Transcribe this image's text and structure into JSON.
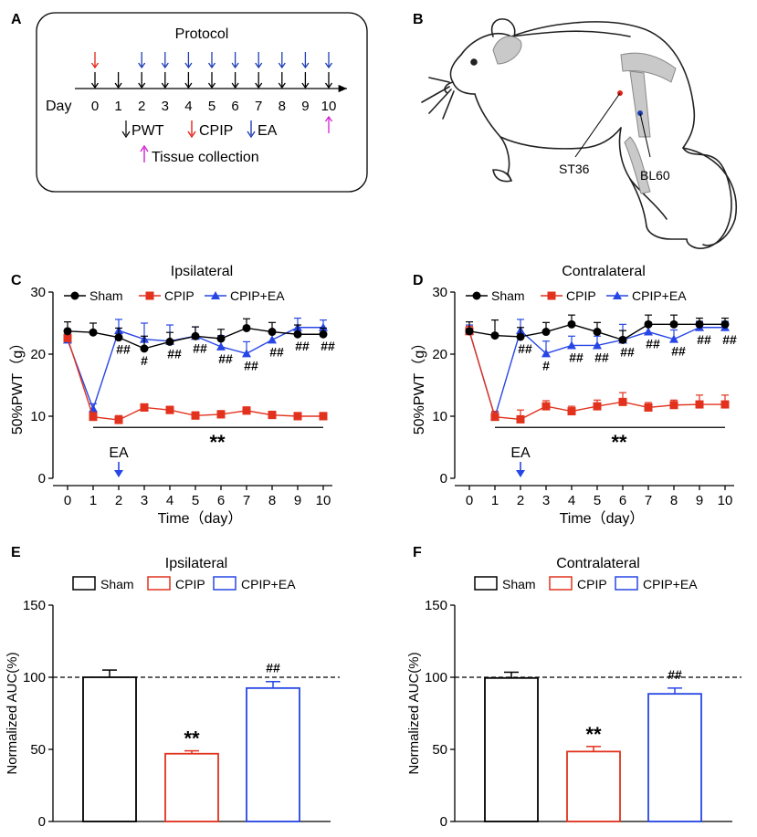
{
  "panel_labels": {
    "a": "A",
    "b": "B",
    "c": "C",
    "d": "D",
    "e": "E",
    "f": "F"
  },
  "protocol": {
    "title": "Protocol",
    "day_label": "Day",
    "days": [
      "0",
      "1",
      "2",
      "3",
      "4",
      "5",
      "6",
      "7",
      "8",
      "9",
      "10"
    ],
    "legend_pwt": "PWT",
    "legend_cpip": "CPIP",
    "legend_ea": "EA",
    "legend_tissue": "Tissue collection",
    "cpip_days": [
      0
    ],
    "ea_days": [
      2,
      3,
      4,
      5,
      6,
      7,
      8,
      9,
      10
    ],
    "pwt_days": [
      0,
      1,
      2,
      3,
      4,
      5,
      6,
      7,
      8,
      9,
      10
    ],
    "tissue_days": [
      10
    ],
    "colors": {
      "pwt": "#000000",
      "cpip": "#e2231a",
      "ea": "#1f3fb4",
      "tissue": "#d21fd2"
    }
  },
  "rat": {
    "st36_label": "ST36",
    "bl60_label": "BL60"
  },
  "colors": {
    "sham": "#000000",
    "cpip": "#e2321d",
    "cpip_ea": "#2746e6"
  },
  "chart_data": [
    {
      "id": "C",
      "type": "line",
      "title": "Ipsilateral",
      "xlabel": "Time（day）",
      "ylabel": "50%PWT（g）",
      "x": [
        0,
        1,
        2,
        3,
        4,
        5,
        6,
        7,
        8,
        9,
        10
      ],
      "xlim": [
        0,
        10
      ],
      "ylim": [
        0,
        30
      ],
      "yticks": [
        0,
        10,
        20,
        30
      ],
      "series": [
        {
          "name": "Sham",
          "values": [
            23.7,
            23.5,
            22.7,
            20.9,
            22.0,
            22.9,
            22.5,
            24.2,
            23.6,
            23.2,
            23.2
          ],
          "err": [
            1.5,
            1.5,
            1.5,
            2.0,
            1.5,
            1.5,
            1.5,
            1.5,
            1.5,
            1.5,
            1.0
          ]
        },
        {
          "name": "CPIP",
          "values": [
            22.6,
            9.9,
            9.4,
            11.4,
            11.0,
            10.1,
            10.3,
            10.9,
            10.2,
            10.0,
            10.0
          ],
          "err": [
            0.8,
            0.7,
            0.7,
            0.6,
            0.6,
            0.6,
            0.6,
            0.6,
            0.6,
            0.6,
            0.6
          ]
        },
        {
          "name": "CPIP+EA",
          "values": [
            22.3,
            11.2,
            23.8,
            22.4,
            22.1,
            22.9,
            21.2,
            20.1,
            22.3,
            24.3,
            24.3
          ],
          "err": [
            1.5,
            0.8,
            1.8,
            2.6,
            2.6,
            1.5,
            1.8,
            1.9,
            1.5,
            1.5,
            1.2
          ]
        }
      ],
      "hash_labels": [
        {
          "x": 2,
          "text": "##"
        },
        {
          "x": 3,
          "text": "#"
        },
        {
          "x": 4,
          "text": "##"
        },
        {
          "x": 5,
          "text": "##"
        },
        {
          "x": 6,
          "text": "##"
        },
        {
          "x": 7,
          "text": "##"
        },
        {
          "x": 8,
          "text": "##"
        },
        {
          "x": 9,
          "text": "##"
        },
        {
          "x": 10,
          "text": "##"
        }
      ],
      "sig_line": {
        "x_from": 1,
        "x_to": 10,
        "label": "**"
      },
      "ea_marker": {
        "x": 2,
        "label": "EA"
      }
    },
    {
      "id": "D",
      "type": "line",
      "title": "Contralateral",
      "xlabel": "Time（day）",
      "ylabel": "50%PWT（g）",
      "x": [
        0,
        1,
        2,
        3,
        4,
        5,
        6,
        7,
        8,
        9,
        10
      ],
      "xlim": [
        0,
        10
      ],
      "ylim": [
        0,
        30
      ],
      "yticks": [
        0,
        10,
        20,
        30
      ],
      "series": [
        {
          "name": "Sham",
          "values": [
            23.7,
            23.0,
            22.8,
            23.6,
            24.8,
            23.6,
            22.3,
            24.8,
            24.8,
            24.8,
            24.8
          ],
          "err": [
            1.5,
            2.5,
            1.5,
            1.5,
            1.5,
            1.5,
            1.5,
            1.5,
            1.5,
            1.0,
            1.0
          ]
        },
        {
          "name": "CPIP",
          "values": [
            23.7,
            9.9,
            9.5,
            11.6,
            10.8,
            11.6,
            12.3,
            11.4,
            11.8,
            11.9,
            11.9
          ],
          "err": [
            0.8,
            0.9,
            1.5,
            0.9,
            0.8,
            1.0,
            1.5,
            0.8,
            0.8,
            1.5,
            1.5
          ]
        },
        {
          "name": "CPIP+EA",
          "values": [
            23.7,
            9.9,
            23.8,
            20.1,
            21.4,
            21.4,
            22.3,
            23.6,
            22.4,
            24.3,
            24.3
          ],
          "err": [
            1.0,
            0.8,
            1.8,
            2.0,
            1.5,
            1.5,
            2.5,
            1.5,
            1.5,
            1.0,
            1.0
          ]
        }
      ],
      "hash_labels": [
        {
          "x": 2,
          "text": "##"
        },
        {
          "x": 3,
          "text": "#"
        },
        {
          "x": 4,
          "text": "##"
        },
        {
          "x": 5,
          "text": "##"
        },
        {
          "x": 6,
          "text": "##"
        },
        {
          "x": 7,
          "text": "##"
        },
        {
          "x": 8,
          "text": "##"
        },
        {
          "x": 9,
          "text": "##"
        },
        {
          "x": 10,
          "text": "##"
        }
      ],
      "sig_line": {
        "x_from": 1,
        "x_to": 10,
        "label": "**"
      },
      "ea_marker": {
        "x": 2,
        "label": "EA"
      }
    },
    {
      "id": "E",
      "type": "bar",
      "title": "Ipsilateral",
      "ylabel": "Normalized AUC(%)",
      "categories": [
        "Sham",
        "CPIP",
        "CPIP+EA"
      ],
      "values": [
        100,
        47,
        92.5
      ],
      "err": [
        5,
        2,
        4.5
      ],
      "ylim": [
        0,
        150
      ],
      "yticks": [
        0,
        50,
        100,
        150
      ],
      "reference_line": 100,
      "annotations": [
        "",
        "**",
        "##"
      ]
    },
    {
      "id": "F",
      "type": "bar",
      "title": "Contralateral",
      "ylabel": "Normalized AUC(%)",
      "categories": [
        "Sham",
        "CPIP",
        "CPIP+EA"
      ],
      "values": [
        99.5,
        48.5,
        88.5
      ],
      "err": [
        4,
        3.5,
        4
      ],
      "ylim": [
        0,
        150
      ],
      "yticks": [
        0,
        50,
        100,
        150
      ],
      "reference_line": 100,
      "annotations": [
        "",
        "**",
        "##"
      ]
    }
  ]
}
